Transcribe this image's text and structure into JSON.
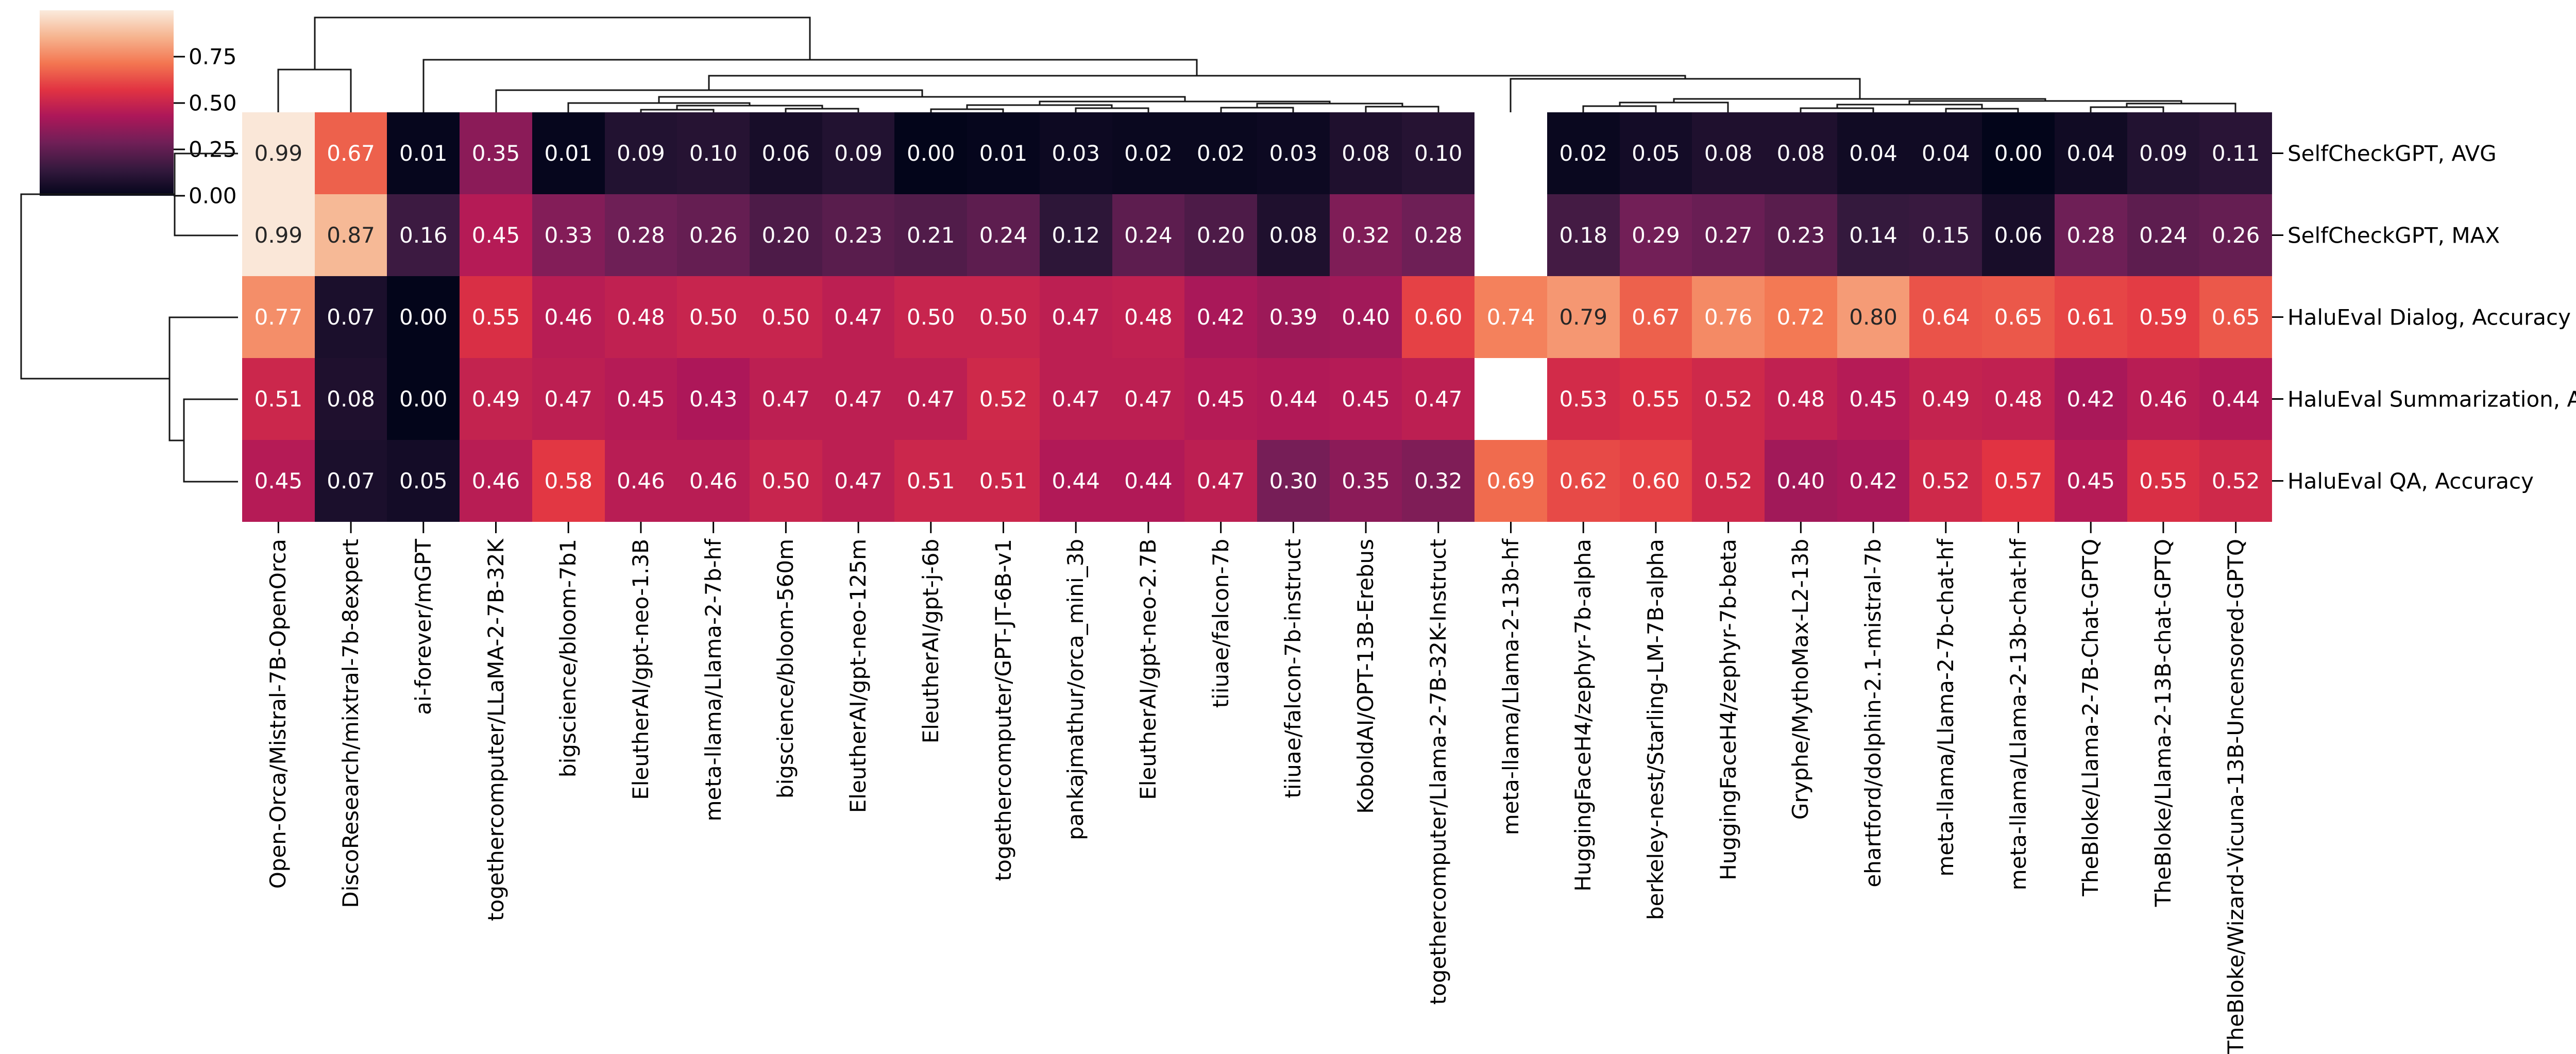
{
  "figure": {
    "kind": "seaborn-clustermap",
    "background": "#ffffff",
    "description_not_rendered": ""
  },
  "colormap": {
    "name": "rocket",
    "stops": [
      [
        0.0,
        "#03051A"
      ],
      [
        0.143,
        "#35193E"
      ],
      [
        0.286,
        "#701F57"
      ],
      [
        0.429,
        "#AD1759"
      ],
      [
        0.571,
        "#E13342"
      ],
      [
        0.714,
        "#F37651"
      ],
      [
        0.857,
        "#F6B48F"
      ],
      [
        1.0,
        "#FAEBDD"
      ]
    ]
  },
  "colorbar": {
    "vmin": 0.0,
    "vmax": 1.0,
    "ticks": [
      {
        "label": "0.75",
        "value": 0.75
      },
      {
        "label": "0.50",
        "value": 0.5
      },
      {
        "label": "0.25",
        "value": 0.25
      },
      {
        "label": "0.00",
        "value": 0.0
      }
    ]
  },
  "annotation_colors": {
    "dark_text": "#262626",
    "light_text": "#ffffff",
    "luminance_threshold": 0.408,
    "missing_cell_color": "#ffffff"
  },
  "chart_data": {
    "type": "heatmap",
    "variant": "clustermap with row and column dendrograms",
    "title": "",
    "xlabel": "",
    "ylabel": "",
    "grid": false,
    "vmin": 0.0,
    "vmax": 1.0,
    "annot": true,
    "annot_format": ".2f",
    "legend_position": "colorbar top-left",
    "rows": [
      "SelfCheckGPT, AVG",
      "SelfCheckGPT, MAX",
      "HaluEval Dialog, Accuracy",
      "HaluEval Summarization, Accuracy",
      "HaluEval QA, Accuracy"
    ],
    "columns": [
      "Open-Orca/Mistral-7B-OpenOrca",
      "DiscoResearch/mixtral-7b-8expert",
      "ai-forever/mGPT",
      "togethercomputer/LLaMA-2-7B-32K",
      "bigscience/bloom-7b1",
      "EleutherAI/gpt-neo-1.3B",
      "meta-llama/Llama-2-7b-hf",
      "bigscience/bloom-560m",
      "EleutherAI/gpt-neo-125m",
      "EleutherAI/gpt-j-6b",
      "togethercomputer/GPT-JT-6B-v1",
      "pankajmathur/orca_mini_3b",
      "EleutherAI/gpt-neo-2.7B",
      "tiiuae/falcon-7b",
      "tiiuae/falcon-7b-instruct",
      "KoboldAI/OPT-13B-Erebus",
      "togethercomputer/Llama-2-7B-32K-Instruct",
      "meta-llama/Llama-2-13b-hf",
      "HuggingFaceH4/zephyr-7b-alpha",
      "berkeley-nest/Starling-LM-7B-alpha",
      "HuggingFaceH4/zephyr-7b-beta",
      "Gryphe/MythoMax-L2-13b",
      "ehartford/dolphin-2.1-mistral-7b",
      "meta-llama/Llama-2-7b-chat-hf",
      "meta-llama/Llama-2-13b-chat-hf",
      "TheBloke/Llama-2-7B-Chat-GPTQ",
      "TheBloke/Llama-2-13B-chat-GPTQ",
      "TheBloke/Wizard-Vicuna-13B-Uncensored-GPTQ"
    ],
    "values": [
      [
        0.99,
        0.67,
        0.01,
        0.35,
        0.01,
        0.09,
        0.1,
        0.06,
        0.09,
        0.0,
        0.01,
        0.03,
        0.02,
        0.02,
        0.03,
        0.08,
        0.1,
        null,
        0.02,
        0.05,
        0.08,
        0.08,
        0.04,
        0.04,
        0.0,
        0.04,
        0.09,
        0.11
      ],
      [
        0.99,
        0.87,
        0.16,
        0.45,
        0.33,
        0.28,
        0.26,
        0.2,
        0.23,
        0.21,
        0.24,
        0.12,
        0.24,
        0.2,
        0.08,
        0.32,
        0.28,
        null,
        0.18,
        0.29,
        0.27,
        0.23,
        0.14,
        0.15,
        0.06,
        0.28,
        0.24,
        0.26
      ],
      [
        0.77,
        0.07,
        0.0,
        0.55,
        0.46,
        0.48,
        0.5,
        0.5,
        0.47,
        0.5,
        0.5,
        0.47,
        0.48,
        0.42,
        0.39,
        0.4,
        0.6,
        0.74,
        0.79,
        0.67,
        0.76,
        0.72,
        0.8,
        0.64,
        0.65,
        0.61,
        0.59,
        0.65
      ],
      [
        0.51,
        0.08,
        0.0,
        0.49,
        0.47,
        0.45,
        0.43,
        0.47,
        0.47,
        0.47,
        0.52,
        0.47,
        0.47,
        0.45,
        0.44,
        0.45,
        0.47,
        null,
        0.53,
        0.55,
        0.52,
        0.48,
        0.45,
        0.49,
        0.48,
        0.42,
        0.46,
        0.44
      ],
      [
        0.45,
        0.07,
        0.05,
        0.46,
        0.58,
        0.46,
        0.46,
        0.5,
        0.47,
        0.51,
        0.51,
        0.44,
        0.44,
        0.47,
        0.3,
        0.35,
        0.32,
        0.69,
        0.62,
        0.6,
        0.52,
        0.4,
        0.42,
        0.52,
        0.57,
        0.45,
        0.55,
        0.52
      ]
    ]
  },
  "dendrograms": {
    "columns": {
      "merges": [
        [
          1244,
          218,
          1385,
          218,
          213
        ],
        [
          1525,
          218,
          1666,
          218,
          211
        ],
        [
          1314,
          213,
          1596,
          211,
          205
        ],
        [
          1103,
          218,
          1455,
          205,
          200
        ],
        [
          1807,
          218,
          1947,
          218,
          212
        ],
        [
          2088,
          218,
          2229,
          218,
          210
        ],
        [
          1877,
          212,
          2158,
          210,
          204
        ],
        [
          2370,
          218,
          2510,
          218,
          209
        ],
        [
          2651,
          218,
          2792,
          218,
          207
        ],
        [
          2440,
          209,
          2722,
          207,
          201
        ],
        [
          2018,
          204,
          2581,
          201,
          197
        ],
        [
          1279,
          200,
          2300,
          197,
          188
        ],
        [
          963,
          218,
          1790,
          188,
          175
        ],
        [
          3073,
          218,
          3214,
          218,
          206
        ],
        [
          3144,
          206,
          3354,
          218,
          199
        ],
        [
          3495,
          218,
          3636,
          218,
          210
        ],
        [
          3777,
          218,
          3917,
          218,
          211
        ],
        [
          3566,
          210,
          3847,
          211,
          203
        ],
        [
          4058,
          218,
          4199,
          218,
          208
        ],
        [
          4128,
          208,
          4339,
          218,
          201
        ],
        [
          3706,
          203,
          4234,
          201,
          196
        ],
        [
          3249,
          199,
          3970,
          196,
          192
        ],
        [
          2932,
          218,
          3610,
          192,
          153
        ],
        [
          1376,
          175,
          3271,
          153,
          147
        ],
        [
          822,
          218,
          2323,
          147,
          116
        ],
        [
          540,
          218,
          681,
          218,
          135
        ],
        [
          611,
          135,
          1572,
          116,
          34
        ]
      ]
    },
    "rows": {
      "merges": [
        [
          298,
          462,
          457,
          462,
          339
        ],
        [
          775,
          462,
          935,
          462,
          357
        ],
        [
          616,
          462,
          855,
          357,
          329
        ],
        [
          377,
          339,
          735,
          329,
          41
        ]
      ]
    }
  }
}
